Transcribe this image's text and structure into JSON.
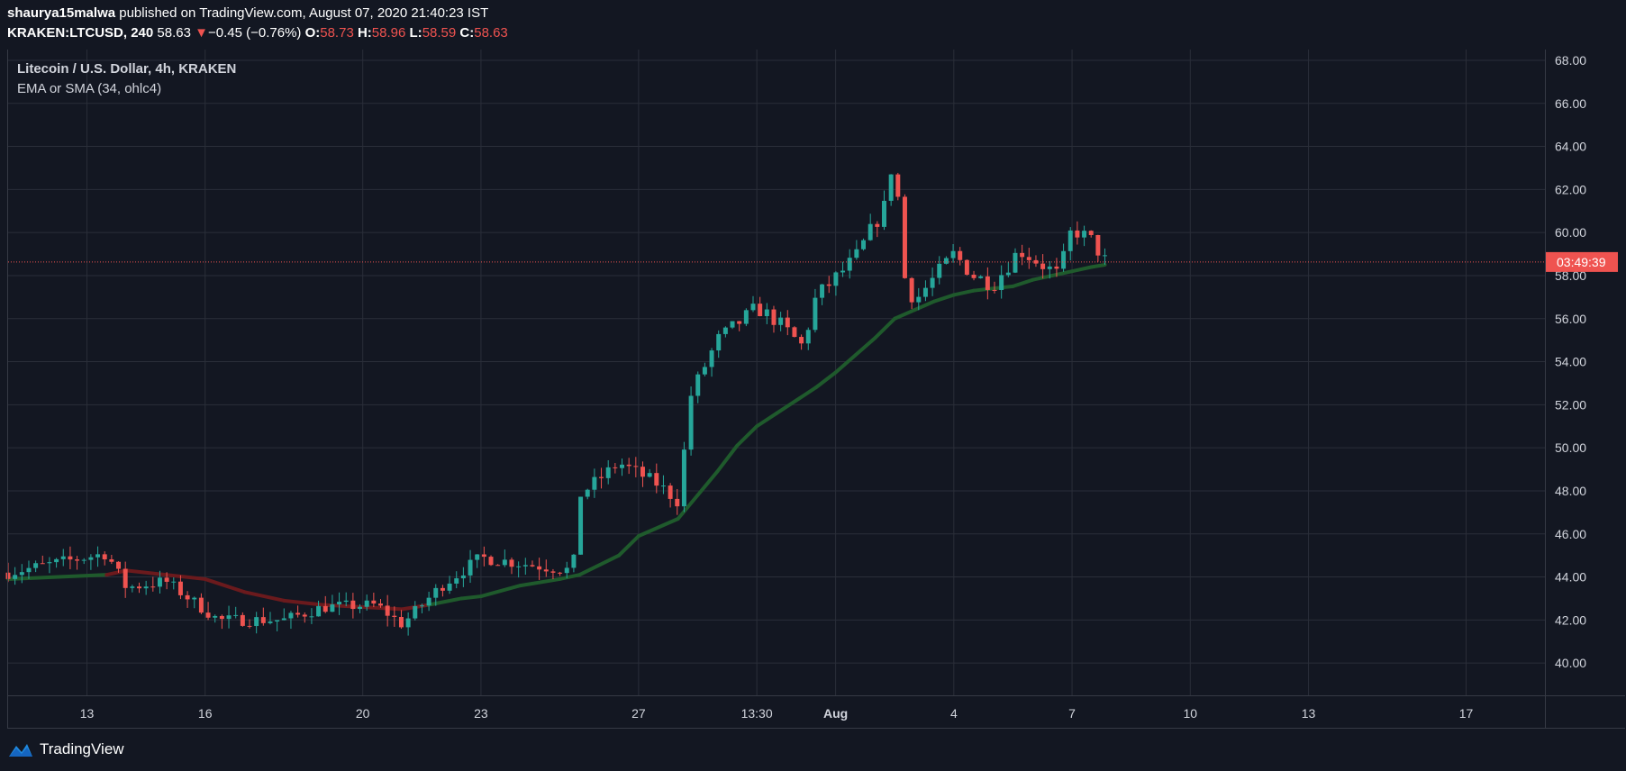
{
  "header": {
    "author": "shaurya15malwa",
    "published_text": "published on TradingView.com, August 07, 2020 21:40:23 IST",
    "symbol": "KRAKEN:LTCUSD, 240",
    "last": "58.63",
    "change_arrow": "▼",
    "change": "−0.45 (−0.76%)",
    "o_label": "O:",
    "o_value": "58.73",
    "h_label": "H:",
    "h_value": "58.96",
    "l_label": "L:",
    "l_value": "58.59",
    "c_label": "C:",
    "c_value": "58.63"
  },
  "legend": {
    "title": "Litecoin / U.S. Dollar, 4h, KRAKEN",
    "indicator": "EMA or SMA (34, ohlc4)"
  },
  "footer": {
    "brand": "TradingView",
    "logo_icon": "tradingview-logo-icon"
  },
  "colors": {
    "background": "#131722",
    "grid": "#2a2e39",
    "up": "#26a69a",
    "down": "#ef5350",
    "ma_up": "#1f5a2c",
    "ma_down": "#6b1a1d",
    "price_line": "#ef5350",
    "axis_text": "#d1d4dc"
  },
  "chart_data": {
    "type": "candlestick",
    "title": "Litecoin / U.S. Dollar, 4h, KRAKEN",
    "y_axis_position": "right",
    "ylim": [
      38.5,
      68.5
    ],
    "y_ticks": [
      "40.00",
      "42.00",
      "44.00",
      "46.00",
      "48.00",
      "50.00",
      "52.00",
      "54.00",
      "56.00",
      "58.00",
      "60.00",
      "62.00",
      "64.00",
      "66.00",
      "68.00"
    ],
    "x_range": [
      "2020-07-11",
      "2020-08-19"
    ],
    "x_ticks": [
      {
        "date": "2020-07-13",
        "label": "13"
      },
      {
        "date": "2020-07-16",
        "label": "16"
      },
      {
        "date": "2020-07-20",
        "label": "20"
      },
      {
        "date": "2020-07-23",
        "label": "23"
      },
      {
        "date": "2020-07-27",
        "label": "27"
      },
      {
        "date": "2020-07-30",
        "label": "13:30"
      },
      {
        "date": "2020-08-01",
        "label": "Aug"
      },
      {
        "date": "2020-08-04",
        "label": "4"
      },
      {
        "date": "2020-08-07",
        "label": "7"
      },
      {
        "date": "2020-08-10",
        "label": "10"
      },
      {
        "date": "2020-08-13",
        "label": "13"
      },
      {
        "date": "2020-08-17",
        "label": "17"
      }
    ],
    "bold_x_tick": "Aug",
    "grid": true,
    "last_price": 58.63,
    "countdown_label": "03:49:39",
    "candle_keypoints": [
      [
        "2020-07-11 00:00",
        44.2
      ],
      [
        "2020-07-13 12:00",
        45.1
      ],
      [
        "2020-07-14 00:00",
        43.5
      ],
      [
        "2020-07-15 00:00",
        43.8
      ],
      [
        "2020-07-16 08:00",
        42.0
      ],
      [
        "2020-07-18 00:00",
        42.0
      ],
      [
        "2020-07-19 00:00",
        42.6
      ],
      [
        "2020-07-20 08:00",
        42.7
      ],
      [
        "2020-07-21 00:00",
        41.8
      ],
      [
        "2020-07-22 00:00",
        43.6
      ],
      [
        "2020-07-23 00:00",
        44.9
      ],
      [
        "2020-07-24 12:00",
        44.5
      ],
      [
        "2020-07-25 08:00",
        44.3
      ],
      [
        "2020-07-25 12:00",
        47.8
      ],
      [
        "2020-07-26 12:00",
        49.3
      ],
      [
        "2020-07-27 12:00",
        48.3
      ],
      [
        "2020-07-28 00:00",
        47.5
      ],
      [
        "2020-07-28 08:00",
        52.5
      ],
      [
        "2020-07-29 00:00",
        55.0
      ],
      [
        "2020-07-30 00:00",
        56.5
      ],
      [
        "2020-07-30 12:00",
        55.9
      ],
      [
        "2020-07-31 04:00",
        54.7
      ],
      [
        "2020-07-31 12:00",
        57.0
      ],
      [
        "2020-08-01 12:00",
        58.8
      ],
      [
        "2020-08-02 08:00",
        61.5
      ],
      [
        "2020-08-02 12:00",
        64.8
      ],
      [
        "2020-08-02 16:00",
        58.3
      ],
      [
        "2020-08-03 00:00",
        56.8
      ],
      [
        "2020-08-04 00:00",
        59.0
      ],
      [
        "2020-08-04 12:00",
        58.0
      ],
      [
        "2020-08-05 00:00",
        57.6
      ],
      [
        "2020-08-05 16:00",
        59.2
      ],
      [
        "2020-08-06 16:00",
        58.0
      ],
      [
        "2020-08-07 00:00",
        60.2
      ],
      [
        "2020-08-07 12:00",
        59.6
      ],
      [
        "2020-08-07 20:00",
        58.7
      ]
    ],
    "candles_count": 160,
    "ma": {
      "name": "EMA or SMA (34, ohlc4)",
      "points": [
        [
          "2020-07-11 00:00",
          43.9
        ],
        [
          "2020-07-13 12:00",
          44.1
        ],
        [
          "2020-07-14 00:00",
          44.3
        ],
        [
          "2020-07-15 00:00",
          44.1
        ],
        [
          "2020-07-16 00:00",
          43.9
        ],
        [
          "2020-07-17 00:00",
          43.3
        ],
        [
          "2020-07-18 00:00",
          42.9
        ],
        [
          "2020-07-19 00:00",
          42.7
        ],
        [
          "2020-07-20 00:00",
          42.6
        ],
        [
          "2020-07-21 00:00",
          42.5
        ],
        [
          "2020-07-21 16:00",
          42.7
        ],
        [
          "2020-07-22 12:00",
          43.0
        ],
        [
          "2020-07-23 00:00",
          43.1
        ],
        [
          "2020-07-24 00:00",
          43.6
        ],
        [
          "2020-07-25 00:00",
          43.9
        ],
        [
          "2020-07-25 12:00",
          44.1
        ],
        [
          "2020-07-26 12:00",
          45.0
        ],
        [
          "2020-07-27 00:00",
          45.9
        ],
        [
          "2020-07-28 00:00",
          46.7
        ],
        [
          "2020-07-28 12:00",
          47.8
        ],
        [
          "2020-07-29 00:00",
          48.9
        ],
        [
          "2020-07-29 12:00",
          50.1
        ],
        [
          "2020-07-30 00:00",
          51.0
        ],
        [
          "2020-07-30 12:00",
          51.6
        ],
        [
          "2020-07-31 00:00",
          52.2
        ],
        [
          "2020-07-31 12:00",
          52.8
        ],
        [
          "2020-08-01 00:00",
          53.5
        ],
        [
          "2020-08-01 12:00",
          54.3
        ],
        [
          "2020-08-02 00:00",
          55.1
        ],
        [
          "2020-08-02 12:00",
          56.0
        ],
        [
          "2020-08-03 00:00",
          56.4
        ],
        [
          "2020-08-03 12:00",
          56.8
        ],
        [
          "2020-08-04 00:00",
          57.1
        ],
        [
          "2020-08-04 12:00",
          57.3
        ],
        [
          "2020-08-05 00:00",
          57.4
        ],
        [
          "2020-08-05 12:00",
          57.5
        ],
        [
          "2020-08-06 00:00",
          57.8
        ],
        [
          "2020-08-06 12:00",
          58.0
        ],
        [
          "2020-08-07 00:00",
          58.2
        ],
        [
          "2020-08-07 12:00",
          58.4
        ],
        [
          "2020-08-07 20:00",
          58.5
        ]
      ],
      "color_change_date": "2020-07-13 12:00",
      "color_change_back_date": "2020-07-21 16:00"
    }
  }
}
